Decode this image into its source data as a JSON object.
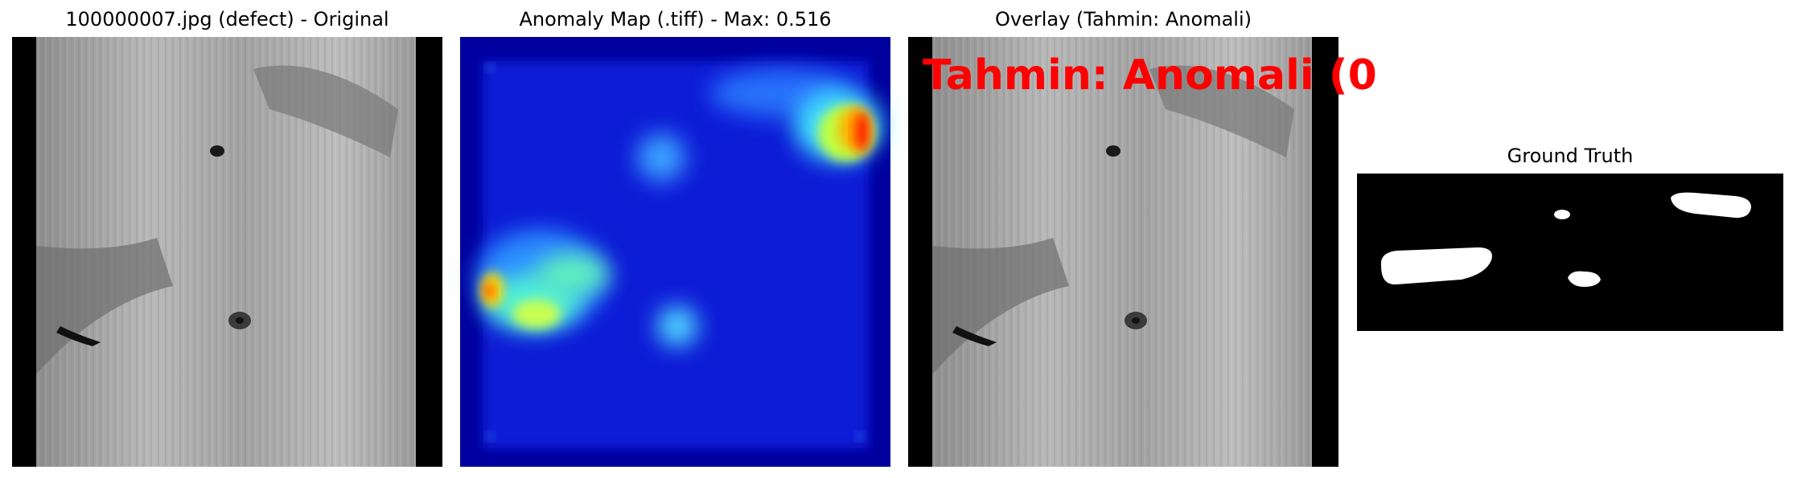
{
  "panels": [
    {
      "title": "100000007.jpg (defect) - Original"
    },
    {
      "title": "Anomaly Map (.tiff) - Max: 0.516"
    },
    {
      "title": "Overlay (Tahmin: Anomali)",
      "overlay_text": "Tahmin: Anomali (0"
    },
    {
      "title": "Ground Truth"
    }
  ],
  "colors": {
    "overlay_text": "#ff0000",
    "heatmap_background": "#0a1fd6",
    "heatmap_border": "#00009e",
    "mask_foreground": "#ffffff",
    "mask_background": "#000000"
  }
}
